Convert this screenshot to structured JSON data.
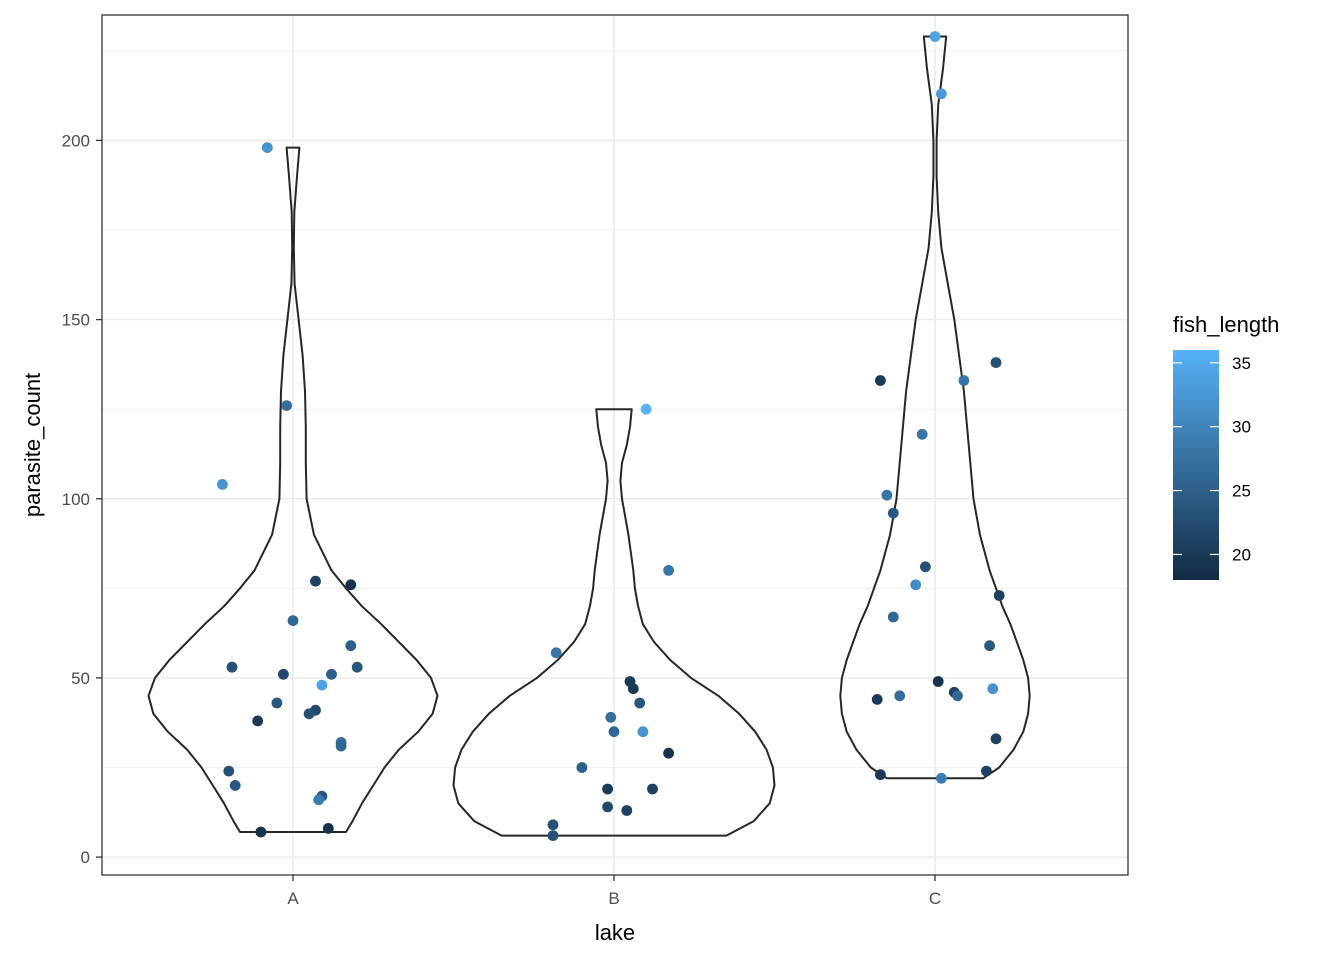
{
  "chart_data": {
    "type": "scatter",
    "subtype": "violin-with-jitter",
    "xlabel": "lake",
    "ylabel": "parasite_count",
    "categories": [
      "A",
      "B",
      "C"
    ],
    "ylim": [
      -5,
      235
    ],
    "y_ticks": [
      0,
      50,
      100,
      150,
      200
    ],
    "grid": true,
    "legend": {
      "title": "fish_length",
      "placement": "right",
      "range": [
        18,
        36
      ],
      "ticks": [
        20,
        25,
        30,
        35
      ],
      "color_low": "#132B43",
      "color_high": "#56B1F7"
    },
    "violins": [
      {
        "category": "A",
        "min": 7,
        "max": 198,
        "profile": [
          [
            7,
            0.33
          ],
          [
            10,
            0.37
          ],
          [
            15,
            0.43
          ],
          [
            20,
            0.5
          ],
          [
            25,
            0.57
          ],
          [
            30,
            0.66
          ],
          [
            35,
            0.78
          ],
          [
            40,
            0.87
          ],
          [
            45,
            0.9
          ],
          [
            50,
            0.86
          ],
          [
            55,
            0.77
          ],
          [
            60,
            0.66
          ],
          [
            65,
            0.55
          ],
          [
            70,
            0.43
          ],
          [
            75,
            0.33
          ],
          [
            80,
            0.24
          ],
          [
            90,
            0.13
          ],
          [
            100,
            0.085
          ],
          [
            110,
            0.08
          ],
          [
            120,
            0.08
          ],
          [
            130,
            0.075
          ],
          [
            140,
            0.06
          ],
          [
            150,
            0.035
          ],
          [
            160,
            0.01
          ],
          [
            170,
            0.005
          ],
          [
            180,
            0.008
          ],
          [
            190,
            0.025
          ],
          [
            198,
            0.04
          ]
        ]
      },
      {
        "category": "B",
        "min": 6,
        "max": 125,
        "profile": [
          [
            6,
            0.7
          ],
          [
            10,
            0.87
          ],
          [
            15,
            0.97
          ],
          [
            20,
            1.0
          ],
          [
            25,
            0.99
          ],
          [
            30,
            0.95
          ],
          [
            35,
            0.88
          ],
          [
            40,
            0.78
          ],
          [
            45,
            0.65
          ],
          [
            50,
            0.48
          ],
          [
            55,
            0.35
          ],
          [
            60,
            0.25
          ],
          [
            65,
            0.18
          ],
          [
            70,
            0.15
          ],
          [
            75,
            0.13
          ],
          [
            80,
            0.12
          ],
          [
            90,
            0.09
          ],
          [
            100,
            0.05
          ],
          [
            105,
            0.04
          ],
          [
            110,
            0.05
          ],
          [
            115,
            0.08
          ],
          [
            120,
            0.1
          ],
          [
            125,
            0.11
          ]
        ]
      },
      {
        "category": "C",
        "min": 22,
        "max": 229,
        "profile": [
          [
            22,
            0.3
          ],
          [
            25,
            0.4
          ],
          [
            30,
            0.49
          ],
          [
            35,
            0.55
          ],
          [
            40,
            0.58
          ],
          [
            45,
            0.59
          ],
          [
            50,
            0.58
          ],
          [
            55,
            0.55
          ],
          [
            60,
            0.51
          ],
          [
            65,
            0.47
          ],
          [
            70,
            0.42
          ],
          [
            75,
            0.38
          ],
          [
            80,
            0.34
          ],
          [
            90,
            0.28
          ],
          [
            100,
            0.24
          ],
          [
            110,
            0.22
          ],
          [
            120,
            0.2
          ],
          [
            130,
            0.18
          ],
          [
            140,
            0.15
          ],
          [
            150,
            0.12
          ],
          [
            160,
            0.08
          ],
          [
            170,
            0.04
          ],
          [
            180,
            0.02
          ],
          [
            190,
            0.01
          ],
          [
            200,
            0.01
          ],
          [
            210,
            0.02
          ],
          [
            220,
            0.05
          ],
          [
            229,
            0.07
          ]
        ]
      }
    ],
    "points": [
      {
        "category": "A",
        "x": 0.92,
        "y": 198,
        "fish_length": 32
      },
      {
        "category": "A",
        "x": 0.98,
        "y": 126,
        "fish_length": 27
      },
      {
        "category": "A",
        "x": 0.78,
        "y": 104,
        "fish_length": 32
      },
      {
        "category": "A",
        "x": 1.07,
        "y": 77,
        "fish_length": 21
      },
      {
        "category": "A",
        "x": 1.18,
        "y": 76,
        "fish_length": 19
      },
      {
        "category": "A",
        "x": 1.0,
        "y": 66,
        "fish_length": 26
      },
      {
        "category": "A",
        "x": 1.18,
        "y": 59,
        "fish_length": 25
      },
      {
        "category": "A",
        "x": 0.81,
        "y": 53,
        "fish_length": 23
      },
      {
        "category": "A",
        "x": 1.2,
        "y": 53,
        "fish_length": 24
      },
      {
        "category": "A",
        "x": 0.97,
        "y": 51,
        "fish_length": 22
      },
      {
        "category": "A",
        "x": 1.12,
        "y": 51,
        "fish_length": 25
      },
      {
        "category": "A",
        "x": 1.09,
        "y": 48,
        "fish_length": 34
      },
      {
        "category": "A",
        "x": 0.95,
        "y": 43,
        "fish_length": 24
      },
      {
        "category": "A",
        "x": 1.07,
        "y": 41,
        "fish_length": 22
      },
      {
        "category": "A",
        "x": 1.05,
        "y": 40,
        "fish_length": 23
      },
      {
        "category": "A",
        "x": 0.89,
        "y": 38,
        "fish_length": 20
      },
      {
        "category": "A",
        "x": 1.15,
        "y": 32,
        "fish_length": 27
      },
      {
        "category": "A",
        "x": 1.15,
        "y": 31,
        "fish_length": 26
      },
      {
        "category": "A",
        "x": 0.8,
        "y": 24,
        "fish_length": 23
      },
      {
        "category": "A",
        "x": 0.82,
        "y": 20,
        "fish_length": 24
      },
      {
        "category": "A",
        "x": 1.09,
        "y": 17,
        "fish_length": 24
      },
      {
        "category": "A",
        "x": 1.08,
        "y": 16,
        "fish_length": 29
      },
      {
        "category": "A",
        "x": 1.11,
        "y": 8,
        "fish_length": 19
      },
      {
        "category": "A",
        "x": 0.9,
        "y": 7,
        "fish_length": 19
      },
      {
        "category": "B",
        "x": 2.1,
        "y": 125,
        "fish_length": 36
      },
      {
        "category": "B",
        "x": 2.17,
        "y": 80,
        "fish_length": 28
      },
      {
        "category": "B",
        "x": 1.82,
        "y": 57,
        "fish_length": 28
      },
      {
        "category": "B",
        "x": 2.05,
        "y": 49,
        "fish_length": 20
      },
      {
        "category": "B",
        "x": 2.06,
        "y": 47,
        "fish_length": 20
      },
      {
        "category": "B",
        "x": 2.08,
        "y": 43,
        "fish_length": 24
      },
      {
        "category": "B",
        "x": 1.99,
        "y": 39,
        "fish_length": 27
      },
      {
        "category": "B",
        "x": 2.0,
        "y": 35,
        "fish_length": 26
      },
      {
        "category": "B",
        "x": 2.09,
        "y": 35,
        "fish_length": 32
      },
      {
        "category": "B",
        "x": 2.17,
        "y": 29,
        "fish_length": 19
      },
      {
        "category": "B",
        "x": 1.9,
        "y": 25,
        "fish_length": 25
      },
      {
        "category": "B",
        "x": 1.98,
        "y": 19,
        "fish_length": 20
      },
      {
        "category": "B",
        "x": 2.12,
        "y": 19,
        "fish_length": 21
      },
      {
        "category": "B",
        "x": 1.98,
        "y": 14,
        "fish_length": 22
      },
      {
        "category": "B",
        "x": 2.04,
        "y": 13,
        "fish_length": 21
      },
      {
        "category": "B",
        "x": 1.81,
        "y": 9,
        "fish_length": 23
      },
      {
        "category": "B",
        "x": 1.81,
        "y": 6,
        "fish_length": 23
      },
      {
        "category": "C",
        "x": 3.0,
        "y": 229,
        "fish_length": 34
      },
      {
        "category": "C",
        "x": 3.02,
        "y": 213,
        "fish_length": 33
      },
      {
        "category": "C",
        "x": 3.19,
        "y": 138,
        "fish_length": 23
      },
      {
        "category": "C",
        "x": 3.09,
        "y": 133,
        "fish_length": 28
      },
      {
        "category": "C",
        "x": 2.83,
        "y": 133,
        "fish_length": 20
      },
      {
        "category": "C",
        "x": 2.96,
        "y": 118,
        "fish_length": 28
      },
      {
        "category": "C",
        "x": 2.85,
        "y": 101,
        "fish_length": 28
      },
      {
        "category": "C",
        "x": 2.87,
        "y": 96,
        "fish_length": 24
      },
      {
        "category": "C",
        "x": 2.97,
        "y": 81,
        "fish_length": 23
      },
      {
        "category": "C",
        "x": 2.94,
        "y": 76,
        "fish_length": 31
      },
      {
        "category": "C",
        "x": 3.2,
        "y": 73,
        "fish_length": 21
      },
      {
        "category": "C",
        "x": 2.87,
        "y": 67,
        "fish_length": 26
      },
      {
        "category": "C",
        "x": 3.17,
        "y": 59,
        "fish_length": 24
      },
      {
        "category": "C",
        "x": 3.01,
        "y": 49,
        "fish_length": 19
      },
      {
        "category": "C",
        "x": 3.18,
        "y": 47,
        "fish_length": 32
      },
      {
        "category": "C",
        "x": 3.06,
        "y": 46,
        "fish_length": 21
      },
      {
        "category": "C",
        "x": 3.07,
        "y": 45,
        "fish_length": 26
      },
      {
        "category": "C",
        "x": 2.89,
        "y": 45,
        "fish_length": 27
      },
      {
        "category": "C",
        "x": 2.82,
        "y": 44,
        "fish_length": 20
      },
      {
        "category": "C",
        "x": 3.19,
        "y": 33,
        "fish_length": 21
      },
      {
        "category": "C",
        "x": 3.16,
        "y": 24,
        "fish_length": 21
      },
      {
        "category": "C",
        "x": 2.83,
        "y": 23,
        "fish_length": 20
      },
      {
        "category": "C",
        "x": 3.02,
        "y": 22,
        "fish_length": 29
      }
    ]
  }
}
